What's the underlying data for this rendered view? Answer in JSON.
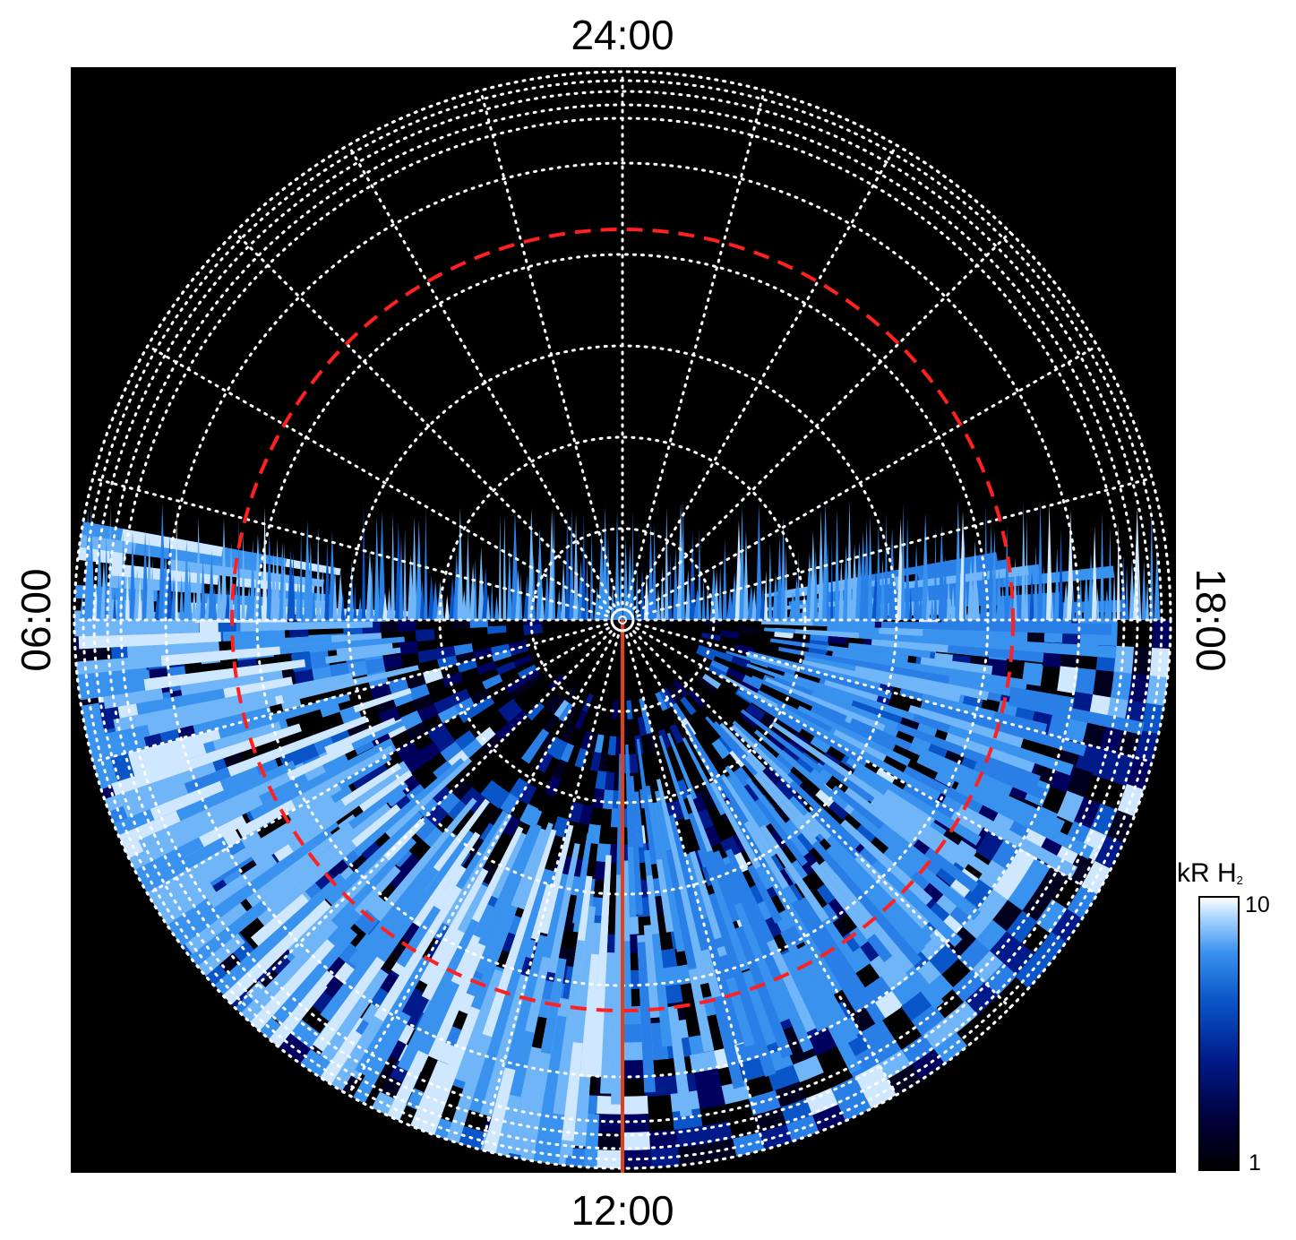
{
  "chart_data": {
    "type": "heatmap",
    "projection": "polar",
    "time_labels": {
      "top": "24:00",
      "bottom": "12:00",
      "left": "06:00",
      "right": "18:00"
    },
    "colorbar": {
      "title": "kR H",
      "title_subscript": "2",
      "min": 1,
      "max": 10,
      "min_label": "1",
      "max_label": "10",
      "scale": "log",
      "colors": [
        "#000000",
        "#001a8a",
        "#0a55c8",
        "#3a92ef",
        "#ffffff"
      ]
    },
    "grid": {
      "visible": true,
      "style": "dotted",
      "color": "#ffffff",
      "meridians": 24,
      "parallels": 12
    },
    "reference_circle": {
      "style": "dashed",
      "color": "#ff2020"
    },
    "meridian_marker": {
      "time": "12:00",
      "color": "#e0401a"
    },
    "background": "#000000"
  }
}
